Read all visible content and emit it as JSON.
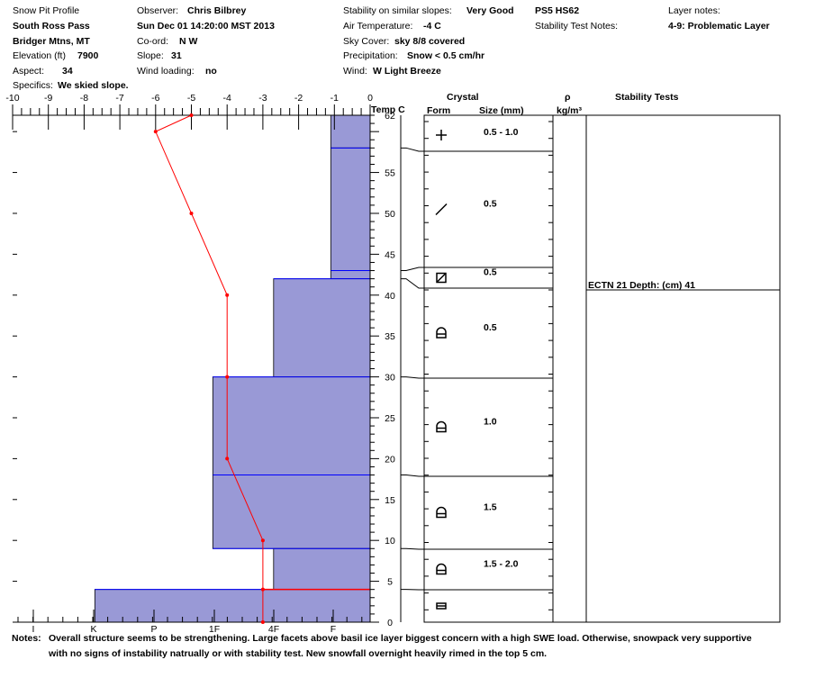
{
  "header": {
    "title": "Snow Pit Profile",
    "location": "South Ross Pass",
    "region": "Bridger Mtns, MT",
    "elevation_label": "Elevation (ft)",
    "elevation_value": "7900",
    "aspect_label": "Aspect:",
    "aspect_value": "34",
    "specifics_label": "Specifics:",
    "specifics_value": "We skied slope.",
    "observer_label": "Observer:",
    "observer_value": "Chris Bilbrey",
    "datetime": "Sun Dec 01 14:20:00 MST 2013",
    "coord_label": "Co-ord:",
    "coord_value": "N  W",
    "slope_label": "Slope:",
    "slope_value": "31",
    "wind_loading_label": "Wind loading:",
    "wind_loading_value": "no",
    "stability_label": "Stability on similar slopes:",
    "stability_value": "Very Good",
    "air_temp_label": "Air Temperature:",
    "air_temp_value": "-4 C",
    "sky_label": "Sky Cover:",
    "sky_value": "sky 8/8 covered",
    "precip_label": "Precipitation:",
    "precip_value": "Snow < 0.5 cm/hr",
    "wind_label": "Wind:",
    "wind_value": "W Light Breeze",
    "ps": "PS5 HS62",
    "stability_notes_label": "Stability Test Notes:",
    "layer_notes_label": "Layer notes:",
    "layer_notes_value": "4-9: Problematic Layer"
  },
  "table_headers": {
    "temp": "Temp C",
    "crystal": "Crystal",
    "form": "Form",
    "size": "Size (mm)",
    "rho": "ρ",
    "density_unit": "kg/m³",
    "stability_tests": "Stability Tests"
  },
  "notes": {
    "label": "Notes:",
    "line1": "Overall structure seems to be strengthening. Large facets above basil ice layer biggest concern with a high SWE load. Otherwise, snowpack very supportive",
    "line2": "with no signs of instability natrually or with stability test. New snowfall overnight heavily rimed in the top 5 cm."
  },
  "colors": {
    "hardness_fill": "#9999d6",
    "layer_line": "#0000ff",
    "temperature": "#ff0000",
    "axis": "#000000"
  },
  "chart_data": {
    "type": "snow-profile",
    "temperature_axis": {
      "label": "Temp C",
      "ticks": [
        "-10",
        "-9",
        "-8",
        "-7",
        "-6",
        "-5",
        "-4",
        "-3",
        "-2",
        "-1",
        "0"
      ],
      "range": [
        -10,
        0
      ]
    },
    "depth_axis": {
      "range": [
        0,
        62
      ],
      "ticks": [
        "62",
        "55",
        "50",
        "45",
        "40",
        "35",
        "30",
        "25",
        "20",
        "15",
        "10",
        "5",
        "0"
      ]
    },
    "hardness_axis": {
      "ticks": [
        "I",
        "K",
        "P",
        "1F",
        "4F",
        "F"
      ],
      "scale_note": "hand hardness, plotted by temperature-axis equivalent"
    },
    "hardness_layers": [
      {
        "bottom": 58,
        "top": 62,
        "hardness_value": -1.1
      },
      {
        "bottom": 43,
        "top": 58,
        "hardness_value": -1.1
      },
      {
        "bottom": 42,
        "top": 43,
        "hardness_value": -1.1
      },
      {
        "bottom": 30,
        "top": 42,
        "hardness_value": -2.7
      },
      {
        "bottom": 18,
        "top": 30,
        "hardness_value": -4.4
      },
      {
        "bottom": 9,
        "top": 18,
        "hardness_value": -4.4
      },
      {
        "bottom": 4,
        "top": 9,
        "hardness_value": -2.7
      },
      {
        "bottom": 0,
        "top": 4,
        "hardness_value": -7.7
      }
    ],
    "layer_boundaries": [
      58,
      43,
      42,
      30,
      18,
      9,
      4
    ],
    "temperature_profile": [
      {
        "depth": 62,
        "temp": -5
      },
      {
        "depth": 60,
        "temp": -6
      },
      {
        "depth": 50,
        "temp": -5
      },
      {
        "depth": 40,
        "temp": -4
      },
      {
        "depth": 30,
        "temp": -4
      },
      {
        "depth": 20,
        "temp": -4
      },
      {
        "depth": 10,
        "temp": -3
      },
      {
        "depth": 4,
        "temp": -3
      },
      {
        "depth": 0,
        "temp": -3
      }
    ],
    "crystals": [
      {
        "form_icon": "precipitation-particle-plus",
        "size": "0.5 - 1.0"
      },
      {
        "form_icon": "decomposing-fragments-slash",
        "size": "0.5"
      },
      {
        "form_icon": "melt-freeze-crust-square",
        "size": "0.5"
      },
      {
        "form_icon": "faceted-crystal",
        "size": "0.5"
      },
      {
        "form_icon": "faceted-crystal",
        "size": "1.0"
      },
      {
        "form_icon": "faceted-crystal",
        "size": "1.5"
      },
      {
        "form_icon": "faceted-crystal",
        "size": "1.5 - 2.0"
      },
      {
        "form_icon": "ice-layer",
        "size": ""
      }
    ],
    "stability_test": {
      "text": "ECTN 21   Depth: (cm) 41",
      "depth": 41
    }
  }
}
